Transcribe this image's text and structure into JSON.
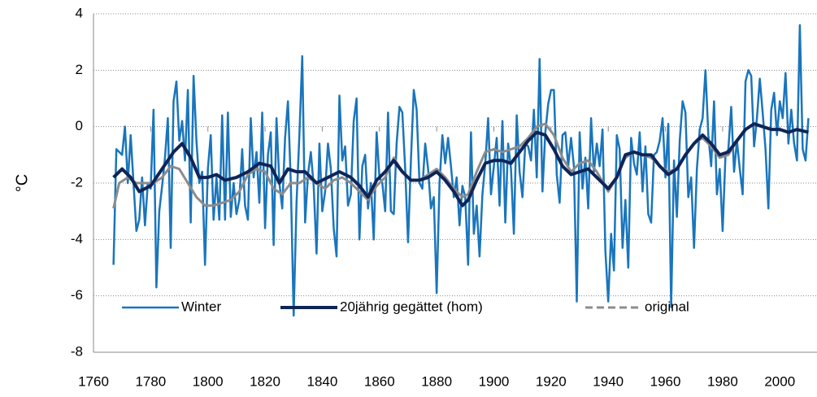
{
  "chart_data": {
    "type": "line",
    "y_label": "°C",
    "xlim": [
      1760,
      2013
    ],
    "xticks": [
      1760,
      1780,
      1800,
      1820,
      1840,
      1860,
      1880,
      1900,
      1920,
      1940,
      1960,
      1980,
      2000
    ],
    "ylim": [
      -8,
      4
    ],
    "yticks": [
      -8,
      -6,
      -4,
      -2,
      0,
      2,
      4
    ],
    "grid": true,
    "legend": "lower left",
    "series": [
      {
        "name": "Winter",
        "color": "#1a75bc",
        "x": [
          1767,
          1768,
          1769,
          1770,
          1771,
          1772,
          1773,
          1774,
          1775,
          1776,
          1777,
          1778,
          1779,
          1780,
          1781,
          1782,
          1783,
          1784,
          1785,
          1786,
          1787,
          1788,
          1789,
          1790,
          1791,
          1792,
          1793,
          1794,
          1795,
          1796,
          1797,
          1798,
          1799,
          1800,
          1801,
          1802,
          1803,
          1804,
          1805,
          1806,
          1807,
          1808,
          1809,
          1810,
          1811,
          1812,
          1813,
          1814,
          1815,
          1816,
          1817,
          1818,
          1819,
          1820,
          1821,
          1822,
          1823,
          1824,
          1825,
          1826,
          1827,
          1828,
          1829,
          1830,
          1831,
          1832,
          1833,
          1834,
          1835,
          1836,
          1837,
          1838,
          1839,
          1840,
          1841,
          1842,
          1843,
          1844,
          1845,
          1846,
          1847,
          1848,
          1849,
          1850,
          1851,
          1852,
          1853,
          1854,
          1855,
          1856,
          1857,
          1858,
          1859,
          1860,
          1861,
          1862,
          1863,
          1864,
          1865,
          1866,
          1867,
          1868,
          1869,
          1870,
          1871,
          1872,
          1873,
          1874,
          1875,
          1876,
          1877,
          1878,
          1879,
          1880,
          1881,
          1882,
          1883,
          1884,
          1885,
          1886,
          1887,
          1888,
          1889,
          1890,
          1891,
          1892,
          1893,
          1894,
          1895,
          1896,
          1897,
          1898,
          1899,
          1900,
          1901,
          1902,
          1903,
          1904,
          1905,
          1906,
          1907,
          1908,
          1909,
          1910,
          1911,
          1912,
          1913,
          1914,
          1915,
          1916,
          1917,
          1918,
          1919,
          1920,
          1921,
          1922,
          1923,
          1924,
          1925,
          1926,
          1927,
          1928,
          1929,
          1930,
          1931,
          1932,
          1933,
          1934,
          1935,
          1936,
          1937,
          1938,
          1939,
          1940,
          1941,
          1942,
          1943,
          1944,
          1945,
          1946,
          1947,
          1948,
          1949,
          1950,
          1951,
          1952,
          1953,
          1954,
          1955,
          1956,
          1957,
          1958,
          1959,
          1960,
          1961,
          1962,
          1963,
          1964,
          1965,
          1966,
          1967,
          1968,
          1969,
          1970,
          1971,
          1972,
          1973,
          1974,
          1975,
          1976,
          1977,
          1978,
          1979,
          1980,
          1981,
          1982,
          1983,
          1984,
          1985,
          1986,
          1987,
          1988,
          1989,
          1990,
          1991,
          1992,
          1993,
          1994,
          1995,
          1996,
          1997,
          1998,
          1999,
          2000,
          2001,
          2002,
          2003,
          2004,
          2005,
          2006,
          2007,
          2008,
          2009,
          2010
        ],
        "values": [
          -4.9,
          -0.8,
          -0.9,
          -1.0,
          0.0,
          -2.0,
          -0.3,
          -2.0,
          -3.7,
          -3.3,
          -1.8,
          -3.5,
          -2.0,
          -2.2,
          0.6,
          -5.7,
          -3.0,
          -2.1,
          -1.1,
          0.3,
          -4.3,
          0.9,
          1.6,
          -0.5,
          0.2,
          -1.2,
          1.3,
          -3.4,
          1.8,
          -0.5,
          -2.0,
          -1.6,
          -4.9,
          -1.5,
          -0.3,
          -3.3,
          -1.8,
          -3.3,
          0.4,
          -3.3,
          0.5,
          -3.2,
          -2.0,
          -3.1,
          -2.6,
          -0.8,
          -2.8,
          -3.3,
          0.3,
          -1.8,
          -0.9,
          -2.7,
          0.5,
          -3.6,
          -1.0,
          -0.2,
          -4.2,
          0.3,
          -2.0,
          -2.9,
          -0.4,
          0.9,
          -2.0,
          -6.7,
          -2.7,
          -0.3,
          2.5,
          -3.4,
          -1.7,
          -0.9,
          -2.1,
          -4.5,
          -0.6,
          -3.0,
          -2.3,
          -0.6,
          -1.5,
          -3.6,
          -4.6,
          1.1,
          -1.2,
          -0.7,
          -2.8,
          -2.4,
          0.2,
          1.0,
          -4.0,
          -1.4,
          -1.0,
          -2.9,
          -2.0,
          -4.0,
          -0.2,
          -1.8,
          -2.0,
          -3.0,
          0.5,
          -3.0,
          -3.1,
          -0.6,
          0.7,
          0.5,
          -1.5,
          -4.1,
          -1.2,
          1.3,
          0.6,
          -2.0,
          -2.2,
          -0.6,
          -1.5,
          -2.9,
          -2.5,
          -5.9,
          -2.0,
          -0.3,
          -1.3,
          -0.4,
          -1.4,
          -2.5,
          -1.8,
          -3.5,
          -2.1,
          -2.5,
          -4.9,
          -0.2,
          -3.8,
          -2.8,
          -4.6,
          -2.4,
          -1.3,
          0.3,
          -2.4,
          -1.4,
          -0.4,
          -2.8,
          0.2,
          -3.4,
          -0.6,
          -1.5,
          -3.8,
          0.4,
          -1.6,
          -2.5,
          -0.6,
          -0.7,
          -1.2,
          0.6,
          -1.8,
          2.4,
          -2.3,
          -0.2,
          0.8,
          1.3,
          1.3,
          -1.7,
          -2.7,
          -0.3,
          -0.2,
          -1.4,
          -0.4,
          -1.4,
          -6.2,
          -0.2,
          -2.2,
          -1.1,
          -2.9,
          0.3,
          -1.6,
          -0.6,
          -1.4,
          -0.1,
          -4.4,
          -6.2,
          -3.8,
          -5.1,
          -0.3,
          -0.8,
          -4.3,
          -2.6,
          -5.0,
          -0.4,
          -1.3,
          -1.7,
          -0.2,
          -2.3,
          -0.7,
          -3.1,
          -3.4,
          -1.0,
          -0.9,
          -0.5,
          0.3,
          -1.8,
          0.1,
          -6.4,
          -1.2,
          -3.2,
          -0.5,
          0.9,
          0.5,
          -2.5,
          -1.8,
          -4.3,
          -1.5,
          -0.1,
          0.3,
          2.0,
          -0.3,
          -1.4,
          0.9,
          -2.4,
          -1.5,
          -3.7,
          -1.0,
          -0.8,
          0.7,
          -1.6,
          -0.5,
          -1.5,
          -2.4,
          1.6,
          2.0,
          1.8,
          -0.7,
          0.3,
          1.7,
          0.5,
          -0.8,
          -2.9,
          0.6,
          1.2,
          -0.3,
          0.9,
          0.3,
          1.9,
          -0.6,
          0.6,
          -0.6,
          -1.2,
          3.6,
          -0.8,
          -1.2,
          0.3
        ]
      },
      {
        "name": "20jährig gegättet (hom)",
        "color": "#0f2557",
        "x": [
          1767,
          1770,
          1773,
          1776,
          1780,
          1784,
          1788,
          1791,
          1794,
          1797,
          1800,
          1803,
          1806,
          1810,
          1814,
          1818,
          1822,
          1825,
          1828,
          1831,
          1834,
          1838,
          1842,
          1846,
          1850,
          1853,
          1856,
          1859,
          1862,
          1865,
          1868,
          1871,
          1874,
          1877,
          1880,
          1883,
          1886,
          1889,
          1891,
          1894,
          1897,
          1900,
          1903,
          1906,
          1909,
          1912,
          1915,
          1918,
          1921,
          1924,
          1927,
          1930,
          1933,
          1936,
          1940,
          1943,
          1946,
          1949,
          1952,
          1955,
          1958,
          1961,
          1964,
          1967,
          1970,
          1973,
          1976,
          1979,
          1982,
          1985,
          1988,
          1991,
          1994,
          1997,
          2000,
          2003,
          2006,
          2010
        ],
        "values": [
          -1.8,
          -1.5,
          -1.8,
          -2.3,
          -2.1,
          -1.5,
          -0.9,
          -0.6,
          -1.1,
          -1.8,
          -1.8,
          -1.7,
          -1.9,
          -1.8,
          -1.6,
          -1.3,
          -1.4,
          -2.0,
          -1.5,
          -1.6,
          -1.6,
          -2.0,
          -1.8,
          -1.6,
          -1.8,
          -2.1,
          -2.5,
          -1.9,
          -1.6,
          -1.2,
          -1.6,
          -1.9,
          -1.9,
          -1.8,
          -1.6,
          -1.9,
          -2.3,
          -2.8,
          -2.6,
          -1.9,
          -1.3,
          -1.2,
          -1.2,
          -1.3,
          -0.9,
          -0.5,
          -0.2,
          -0.3,
          -0.8,
          -1.4,
          -1.7,
          -1.6,
          -1.5,
          -1.8,
          -2.2,
          -1.8,
          -1.0,
          -0.9,
          -1.0,
          -1.0,
          -1.4,
          -1.7,
          -1.5,
          -1.0,
          -0.6,
          -0.3,
          -0.6,
          -1.0,
          -0.9,
          -0.5,
          -0.1,
          0.1,
          0.0,
          -0.1,
          -0.1,
          -0.2,
          -0.1,
          -0.2
        ]
      },
      {
        "name": "original",
        "color": "#8c8c8c",
        "x": [
          1767,
          1769,
          1772,
          1775,
          1778,
          1781,
          1784,
          1787,
          1790,
          1793,
          1796,
          1799,
          1802,
          1805,
          1808,
          1811,
          1814,
          1817,
          1820,
          1823,
          1826,
          1829,
          1832,
          1835,
          1838,
          1841,
          1844,
          1847,
          1850,
          1853,
          1856,
          1859,
          1862,
          1865,
          1868,
          1871,
          1874,
          1877,
          1880,
          1883,
          1886,
          1889,
          1891,
          1894,
          1897,
          1900,
          1903,
          1906,
          1909,
          1912,
          1915,
          1918,
          1921,
          1924,
          1927,
          1930,
          1933,
          1936,
          1940,
          1943,
          1946,
          1949,
          1952,
          1955,
          1958,
          1961,
          1964,
          1967,
          1970,
          1973,
          1976,
          1979,
          1982,
          1985,
          1988,
          1991,
          1994,
          1997,
          2000,
          2003,
          2006,
          2010
        ],
        "values": [
          -2.9,
          -2.0,
          -1.8,
          -2.0,
          -2.0,
          -2.0,
          -1.8,
          -1.4,
          -1.5,
          -2.0,
          -2.5,
          -2.8,
          -2.8,
          -2.7,
          -2.6,
          -2.3,
          -1.7,
          -1.5,
          -1.6,
          -2.2,
          -2.4,
          -2.0,
          -2.0,
          -1.8,
          -2.0,
          -2.2,
          -1.9,
          -1.8,
          -2.0,
          -2.3,
          -2.6,
          -2.1,
          -1.8,
          -1.1,
          -1.6,
          -1.9,
          -1.9,
          -1.7,
          -1.5,
          -1.8,
          -2.2,
          -2.5,
          -2.4,
          -1.6,
          -0.9,
          -0.8,
          -0.9,
          -0.8,
          -0.7,
          -0.4,
          0.0,
          0.1,
          -0.3,
          -1.1,
          -1.6,
          -1.3,
          -1.2,
          -1.6,
          -2.3,
          -1.8,
          -1.1,
          -0.9,
          -1.0,
          -1.1,
          -1.4,
          -1.6,
          -1.5,
          -1.0,
          -0.6,
          -0.4,
          -0.7,
          -1.1,
          -1.0,
          -0.5,
          -0.1,
          0.1,
          0.0,
          -0.1,
          -0.1,
          -0.2,
          -0.1,
          -0.2
        ]
      }
    ]
  }
}
